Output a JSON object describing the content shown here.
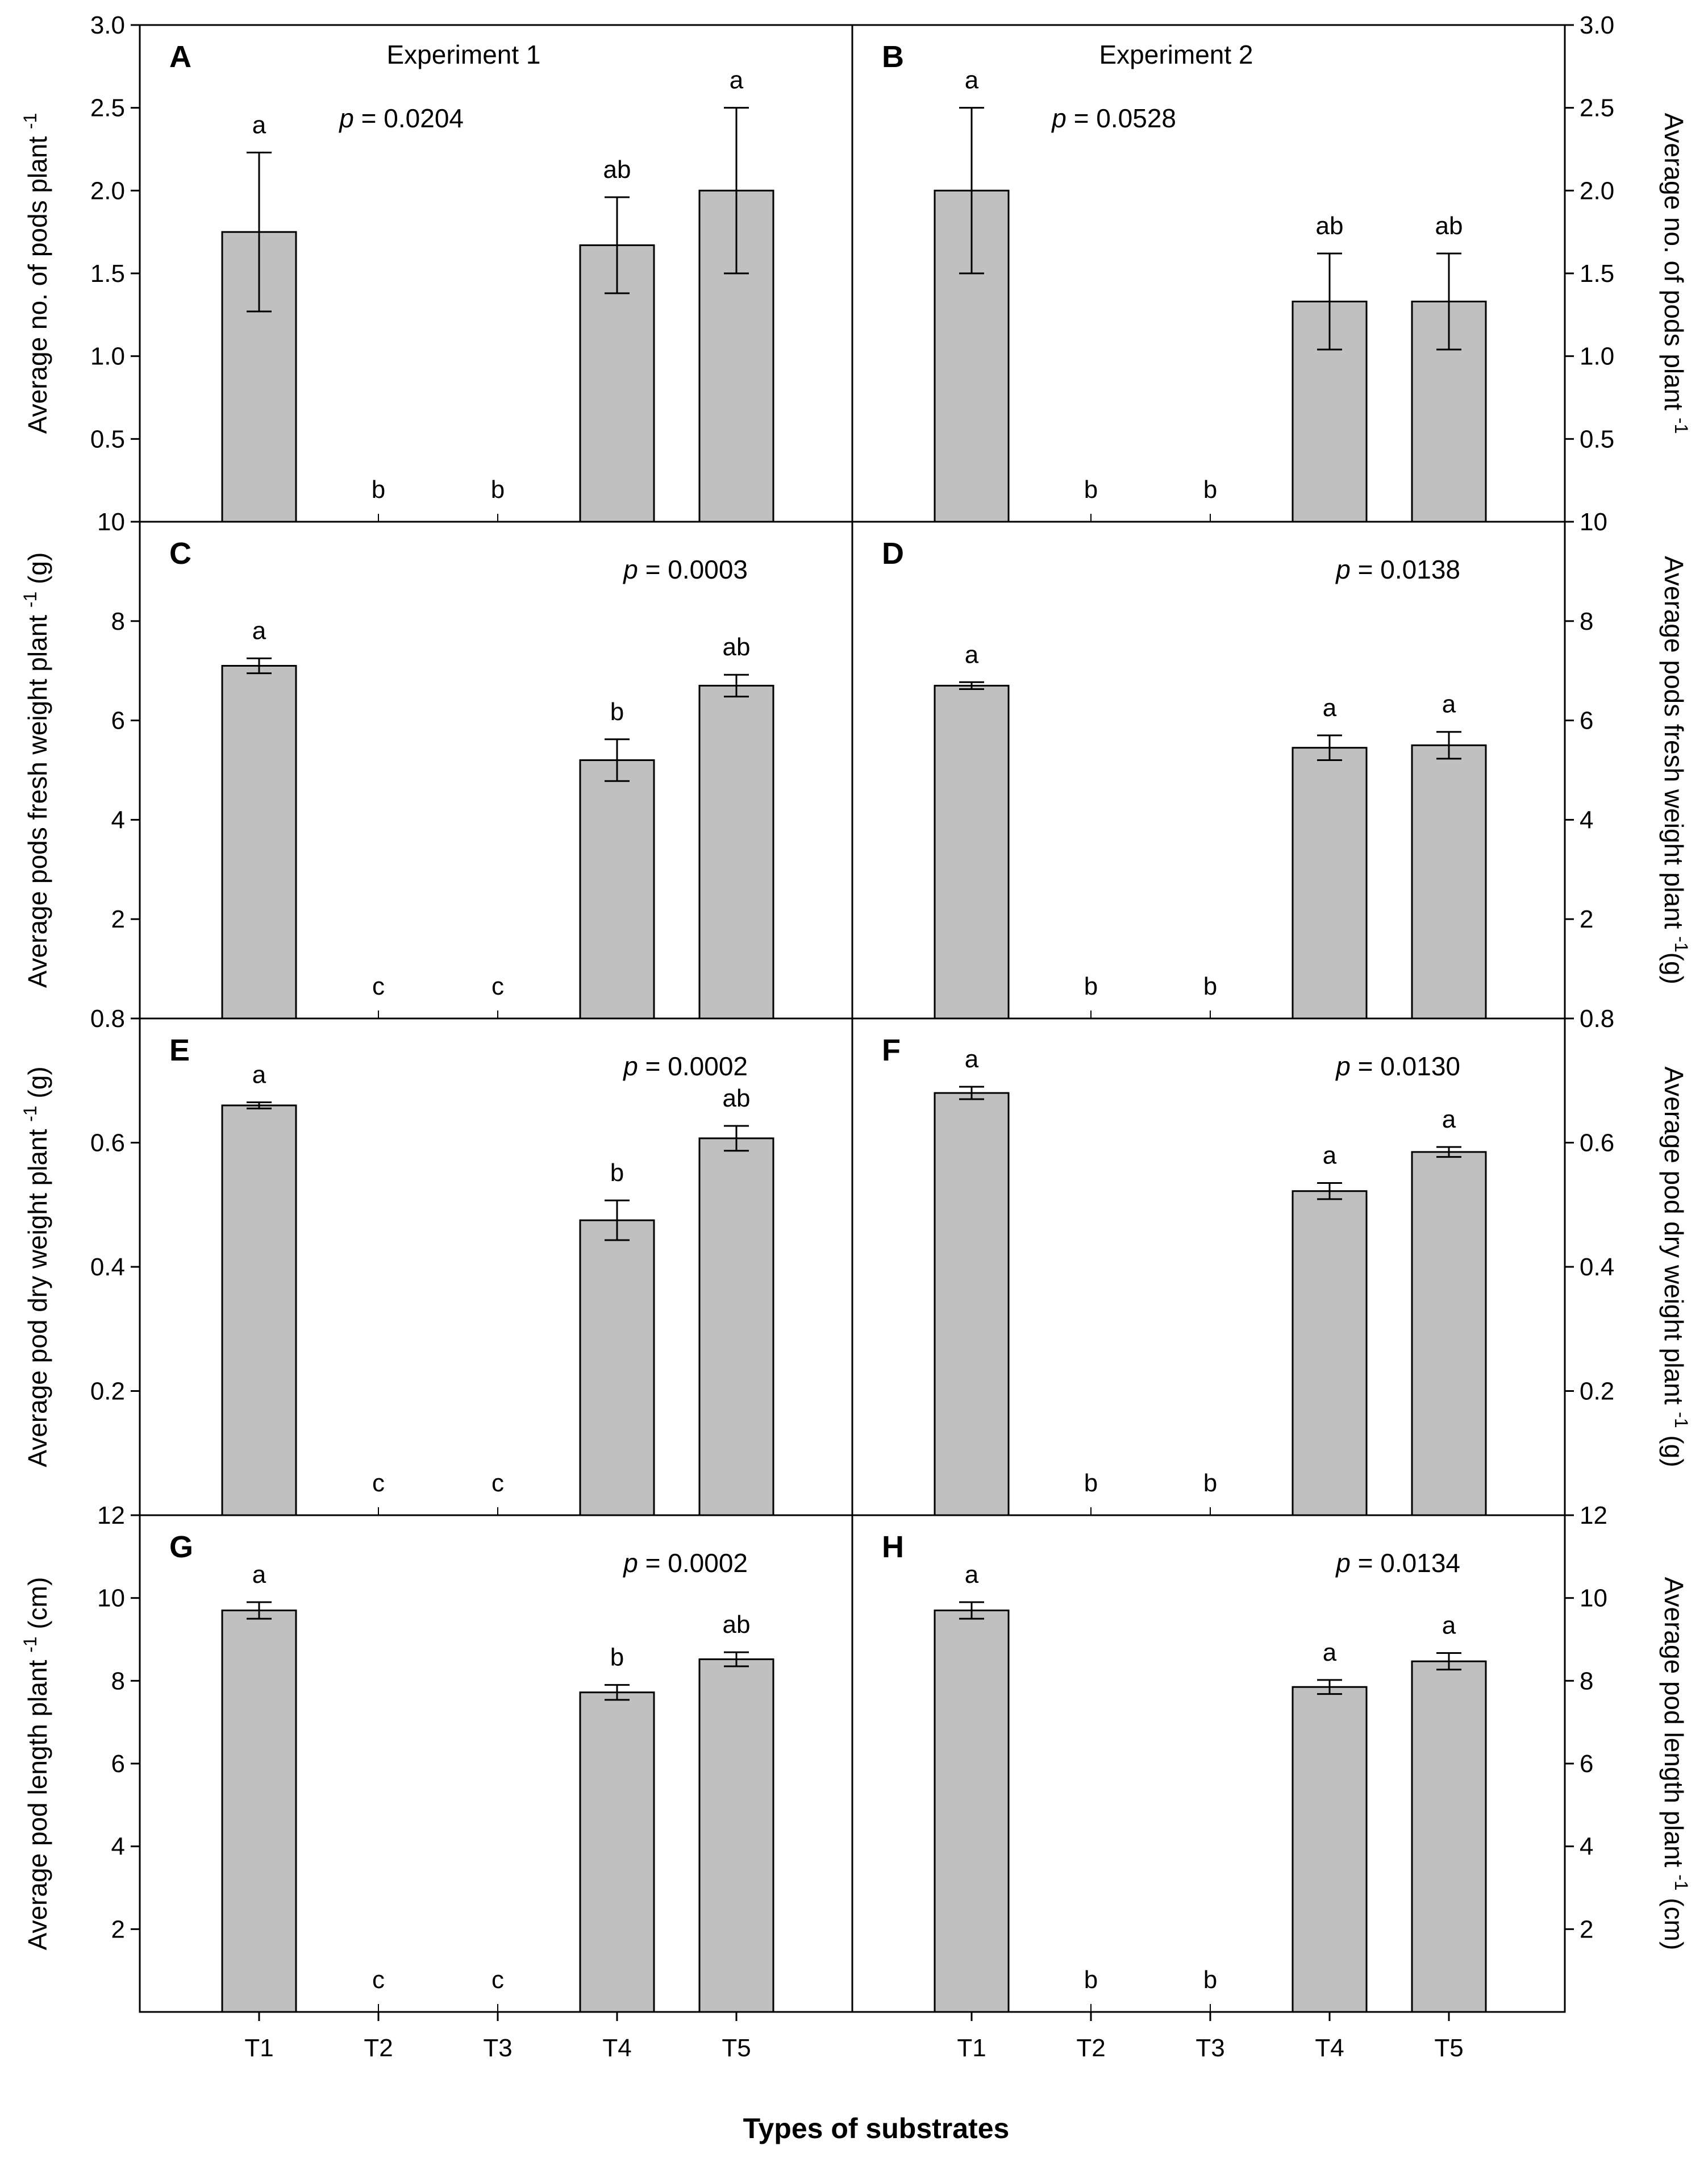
{
  "figure": {
    "xlabel": "Types of substrates",
    "colors": {
      "bar": "#c0c0c0",
      "stroke": "#000000",
      "background": "#ffffff"
    }
  },
  "chart_data": [
    {
      "panel": "A",
      "type": "bar",
      "experiment": "Experiment 1",
      "pvalue": "0.0204",
      "ylabel": "Average no. of pods plant",
      "ylabel_sup": "-1",
      "ylabel_suffix": "",
      "ylim": [
        0,
        3.0
      ],
      "ticks": [
        0.5,
        1.0,
        1.5,
        2.0,
        2.5,
        3.0
      ],
      "tick_labels": [
        "0.5",
        "1.0",
        "1.5",
        "2.0",
        "2.5",
        "3.0"
      ],
      "categories": [
        "T1",
        "T2",
        "T3",
        "T4",
        "T5"
      ],
      "values": [
        1.75,
        0,
        0,
        1.67,
        2.0
      ],
      "errors": [
        0.48,
        0,
        0,
        0.29,
        0.5
      ],
      "letters": [
        "a",
        "b",
        "b",
        "ab",
        "a"
      ]
    },
    {
      "panel": "B",
      "type": "bar",
      "experiment": "Experiment 2",
      "pvalue": "0.0528",
      "ylabel": "Average no. of pods plant",
      "ylabel_sup": "-1",
      "ylabel_suffix": "",
      "ylim": [
        0,
        3.0
      ],
      "ticks": [
        0.5,
        1.0,
        1.5,
        2.0,
        2.5,
        3.0
      ],
      "tick_labels": [
        "0.5",
        "1.0",
        "1.5",
        "2.0",
        "2.5",
        "3.0"
      ],
      "categories": [
        "T1",
        "T2",
        "T3",
        "T4",
        "T5"
      ],
      "values": [
        2.0,
        0,
        0,
        1.33,
        1.33
      ],
      "errors": [
        0.5,
        0,
        0,
        0.29,
        0.29
      ],
      "letters": [
        "a",
        "b",
        "b",
        "ab",
        "ab"
      ]
    },
    {
      "panel": "C",
      "type": "bar",
      "experiment": "",
      "pvalue": "0.0003",
      "ylabel": "Average pods fresh weight plant",
      "ylabel_sup": "-1",
      "ylabel_suffix": " (g)",
      "ylim": [
        0,
        10
      ],
      "ticks": [
        2,
        4,
        6,
        8,
        10
      ],
      "tick_labels": [
        "2",
        "4",
        "6",
        "8",
        "10"
      ],
      "categories": [
        "T1",
        "T2",
        "T3",
        "T4",
        "T5"
      ],
      "values": [
        7.1,
        0,
        0,
        5.2,
        6.7
      ],
      "errors": [
        0.15,
        0,
        0,
        0.42,
        0.22
      ],
      "letters": [
        "a",
        "c",
        "c",
        "b",
        "ab"
      ]
    },
    {
      "panel": "D",
      "type": "bar",
      "experiment": "",
      "pvalue": "0.0138",
      "ylabel": "Average pods fresh weight plant",
      "ylabel_sup": "-1",
      "ylabel_suffix": "(g)",
      "ylim": [
        0,
        10
      ],
      "ticks": [
        2,
        4,
        6,
        8,
        10
      ],
      "tick_labels": [
        "2",
        "4",
        "6",
        "8",
        "10"
      ],
      "categories": [
        "T1",
        "T2",
        "T3",
        "T4",
        "T5"
      ],
      "values": [
        6.7,
        0,
        0,
        5.45,
        5.5
      ],
      "errors": [
        0.07,
        0,
        0,
        0.25,
        0.27
      ],
      "letters": [
        "a",
        "b",
        "b",
        "a",
        "a"
      ]
    },
    {
      "panel": "E",
      "type": "bar",
      "experiment": "",
      "pvalue": "0.0002",
      "ylabel": "Average pod dry weight plant",
      "ylabel_sup": "-1",
      "ylabel_suffix": " (g)",
      "ylim": [
        0,
        0.8
      ],
      "ticks": [
        0.2,
        0.4,
        0.6,
        0.8
      ],
      "tick_labels": [
        "0.2",
        "0.4",
        "0.6",
        "0.8"
      ],
      "categories": [
        "T1",
        "T2",
        "T3",
        "T4",
        "T5"
      ],
      "values": [
        0.66,
        0,
        0,
        0.475,
        0.607
      ],
      "errors": [
        0.005,
        0,
        0,
        0.032,
        0.02
      ],
      "letters": [
        "a",
        "c",
        "c",
        "b",
        "ab"
      ]
    },
    {
      "panel": "F",
      "type": "bar",
      "experiment": "",
      "pvalue": "0.0130",
      "ylabel": "Average pod dry weight plant",
      "ylabel_sup": "-1",
      "ylabel_suffix": " (g)",
      "ylim": [
        0,
        0.8
      ],
      "ticks": [
        0.2,
        0.4,
        0.6,
        0.8
      ],
      "tick_labels": [
        "0.2",
        "0.4",
        "0.6",
        "0.8"
      ],
      "categories": [
        "T1",
        "T2",
        "T3",
        "T4",
        "T5"
      ],
      "values": [
        0.68,
        0,
        0,
        0.522,
        0.585
      ],
      "errors": [
        0.01,
        0,
        0,
        0.013,
        0.008
      ],
      "letters": [
        "a",
        "b",
        "b",
        "a",
        "a"
      ]
    },
    {
      "panel": "G",
      "type": "bar",
      "experiment": "",
      "pvalue": "0.0002",
      "ylabel": "Average pod length plant",
      "ylabel_sup": "-1",
      "ylabel_suffix": " (cm)",
      "ylim": [
        0,
        12
      ],
      "ticks": [
        2,
        4,
        6,
        8,
        10,
        12
      ],
      "tick_labels": [
        "2",
        "4",
        "6",
        "8",
        "10",
        "12"
      ],
      "categories": [
        "T1",
        "T2",
        "T3",
        "T4",
        "T5"
      ],
      "values": [
        9.7,
        0,
        0,
        7.72,
        8.52
      ],
      "errors": [
        0.2,
        0,
        0,
        0.18,
        0.17
      ],
      "letters": [
        "a",
        "c",
        "c",
        "b",
        "ab"
      ]
    },
    {
      "panel": "H",
      "type": "bar",
      "experiment": "",
      "pvalue": "0.0134",
      "ylabel": "Average pod length plant",
      "ylabel_sup": "-1",
      "ylabel_suffix": " (cm)",
      "ylim": [
        0,
        12
      ],
      "ticks": [
        2,
        4,
        6,
        8,
        10,
        12
      ],
      "tick_labels": [
        "2",
        "4",
        "6",
        "8",
        "10",
        "12"
      ],
      "categories": [
        "T1",
        "T2",
        "T3",
        "T4",
        "T5"
      ],
      "values": [
        9.7,
        0,
        0,
        7.85,
        8.47
      ],
      "errors": [
        0.2,
        0,
        0,
        0.17,
        0.2
      ],
      "letters": [
        "a",
        "b",
        "b",
        "a",
        "a"
      ]
    }
  ]
}
